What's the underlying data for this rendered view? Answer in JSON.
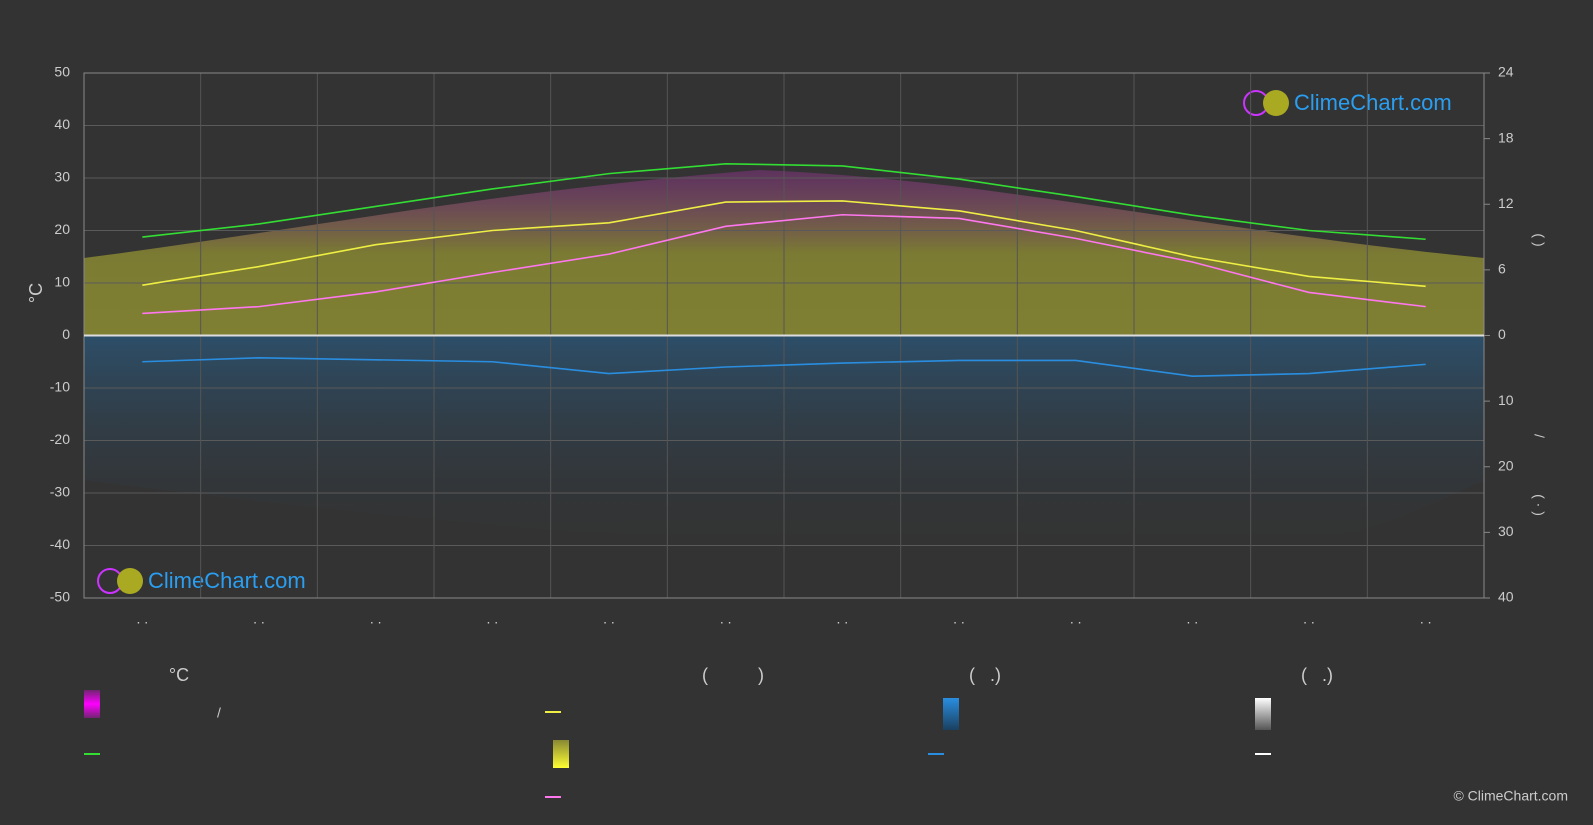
{
  "chart_data": {
    "type": "line",
    "categories": [
      ". .",
      ". .",
      ". .",
      ". .",
      ". .",
      ". .",
      ". .",
      ". .",
      ". .",
      ". .",
      ". .",
      ". ."
    ],
    "ylabel": "°C",
    "y2label_parts": [
      "(      )",
      "/",
      "(  ·  )"
    ],
    "ylim": [
      -50,
      50
    ],
    "yticks": [
      -50,
      -40,
      -30,
      -20,
      -10,
      0,
      10,
      20,
      30,
      40,
      50
    ],
    "y2lim": [
      0,
      24
    ],
    "y2ticks": [
      0,
      6,
      12,
      18,
      24
    ],
    "y3lim": [
      0,
      40
    ],
    "y3ticks": [
      10,
      20,
      30,
      40
    ],
    "series": [
      {
        "color": "#33dd33",
        "axis": "y2",
        "values": [
          9.0,
          10.2,
          11.8,
          13.4,
          14.8,
          15.7,
          15.5,
          14.3,
          12.7,
          11.0,
          9.6,
          8.8
        ]
      },
      {
        "color": "#eeee44",
        "axis": "y2",
        "values": [
          4.6,
          6.3,
          8.3,
          9.6,
          10.3,
          12.2,
          12.3,
          11.4,
          9.6,
          7.2,
          5.4,
          4.5
        ]
      },
      {
        "color": "#ff77ee",
        "values": [
          4.2,
          5.5,
          8.3,
          12.0,
          15.5,
          20.8,
          23.0,
          22.3,
          18.5,
          14.0,
          8.2,
          5.5
        ]
      },
      {
        "color": "#2a8ee0",
        "axis": "y3",
        "values": [
          4.0,
          3.4,
          3.7,
          4.0,
          5.8,
          4.8,
          4.2,
          3.8,
          3.8,
          6.2,
          5.8,
          4.4
        ]
      }
    ],
    "legend_headers": [
      "°C",
      "(          )",
      "(   .)",
      "(   .)"
    ],
    "legend_text": "/",
    "watermark": "ClimeChart.com",
    "copyright": "© ClimeChart.com"
  }
}
